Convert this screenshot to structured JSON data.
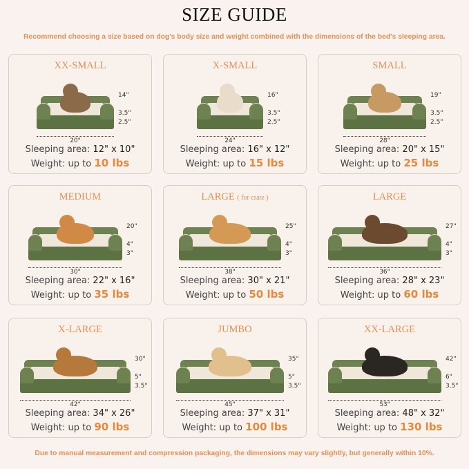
{
  "title": "SIZE GUIDE",
  "subtitle": "Recommend choosing a size based on dog's body size and weight combined with the dimensions of the bed's sleeping area.",
  "footer": "Due to manual measurement and compression packaging, the dimensions may vary slightly, but generally within 10%.",
  "colors": {
    "accent": "#e39156",
    "bed_green": "#5d7243",
    "background": "#faf2ee"
  },
  "sleeping_label": "Sleeping area:",
  "weight_label": "Weight:  up to",
  "sizes": [
    {
      "name": "XX-SMALL",
      "note": "",
      "length": "20\"",
      "diag": "14\"",
      "h1": "3.5\"",
      "h2": "2.5\"",
      "sleeping": "12\" x 10\"",
      "weight": "10 lbs",
      "pet": "cat"
    },
    {
      "name": "X-SMALL",
      "note": "",
      "length": "24\"",
      "diag": "16\"",
      "h1": "3.5\"",
      "h2": "2.5\"",
      "sleeping": "16\" x 12\"",
      "weight": "15 lbs",
      "pet": "dog"
    },
    {
      "name": "SMALL",
      "note": "",
      "length": "28\"",
      "diag": "19\"",
      "h1": "3.5\"",
      "h2": "2.5\"",
      "sleeping": "20\" x 15\"",
      "weight": "25 lbs",
      "pet": "dog"
    },
    {
      "name": "MEDIUM",
      "note": "",
      "length": "30\"",
      "diag": "20\"",
      "h1": "4\"",
      "h2": "3\"",
      "sleeping": "22\" x 16\"",
      "weight": "35 lbs",
      "pet": "dog"
    },
    {
      "name": "LARGE",
      "note": "( for crate )",
      "length": "38\"",
      "diag": "25\"",
      "h1": "4\"",
      "h2": "3\"",
      "sleeping": "30\" x 21\"",
      "weight": "50 lbs",
      "pet": "dog"
    },
    {
      "name": "LARGE",
      "note": "",
      "length": "36\"",
      "diag": "27\"",
      "h1": "4\"",
      "h2": "3\"",
      "sleeping": "28\" x 23\"",
      "weight": "60 lbs",
      "pet": "dog"
    },
    {
      "name": "X-LARGE",
      "note": "",
      "length": "42\"",
      "diag": "30\"",
      "h1": "5\"",
      "h2": "3.5\"",
      "sleeping": "34\" x 26\"",
      "weight": "90 lbs",
      "pet": "dog"
    },
    {
      "name": "JUMBO",
      "note": "",
      "length": "45\"",
      "diag": "35\"",
      "h1": "5\"",
      "h2": "3.5\"",
      "sleeping": "37\" x 31\"",
      "weight": "100 lbs",
      "pet": "dog"
    },
    {
      "name": "XX-LARGE",
      "note": "",
      "length": "53\"",
      "diag": "42\"",
      "h1": "6\"",
      "h2": "3.5\"",
      "sleeping": "48\" x 32\"",
      "weight": "130 lbs",
      "pet": "dog"
    }
  ]
}
